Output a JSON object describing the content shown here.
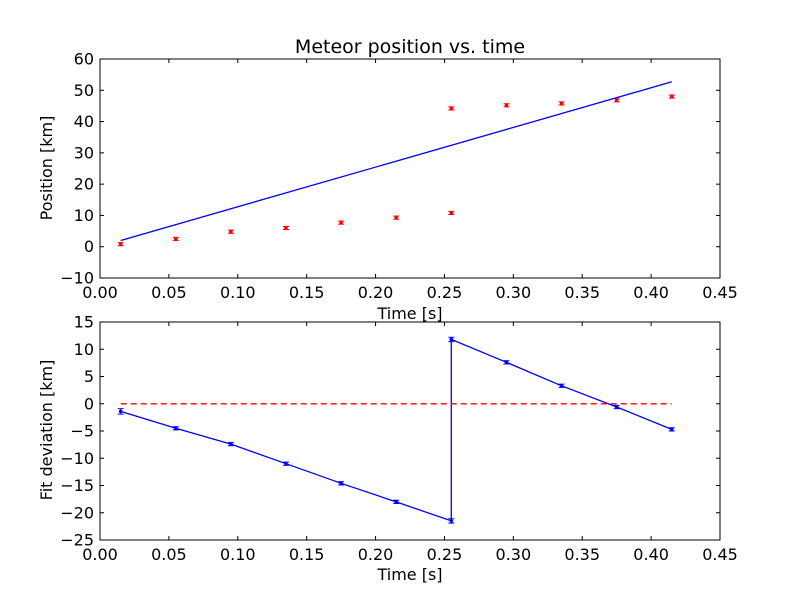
{
  "chart_data": [
    {
      "type": "scatter",
      "title": "Meteor position vs. time",
      "xlabel": "Time [s]",
      "ylabel": "Position [km]",
      "xlim": [
        0.0,
        0.45
      ],
      "ylim": [
        -10,
        60
      ],
      "x_ticks": [
        "0.00",
        "0.05",
        "0.10",
        "0.15",
        "0.20",
        "0.25",
        "0.30",
        "0.35",
        "0.40",
        "0.45"
      ],
      "y_ticks": [
        "−10",
        "0",
        "10",
        "20",
        "30",
        "40",
        "50",
        "60"
      ],
      "grid": false,
      "series": [
        {
          "kind": "points_with_errorbars",
          "color": "#ff0000",
          "x": [
            0.015,
            0.055,
            0.095,
            0.135,
            0.175,
            0.215,
            0.255,
            0.255,
            0.295,
            0.335,
            0.375,
            0.415
          ],
          "y": [
            0.8,
            2.5,
            4.8,
            6.0,
            7.7,
            9.3,
            10.8,
            44.2,
            45.2,
            45.8,
            46.8,
            48.0
          ],
          "yerr": [
            0.5,
            0.5,
            0.5,
            0.5,
            0.5,
            0.5,
            0.5,
            0.5,
            0.5,
            0.5,
            0.5,
            0.5
          ]
        },
        {
          "kind": "fit_line",
          "color": "#0000ff",
          "x": [
            0.015,
            0.415
          ],
          "y": [
            2.0,
            52.7
          ]
        }
      ]
    },
    {
      "type": "line",
      "title": "",
      "xlabel": "Time [s]",
      "ylabel": "Fit deviation [km]",
      "xlim": [
        0.0,
        0.45
      ],
      "ylim": [
        -25,
        15
      ],
      "x_ticks": [
        "0.00",
        "0.05",
        "0.10",
        "0.15",
        "0.20",
        "0.25",
        "0.30",
        "0.35",
        "0.40",
        "0.45"
      ],
      "y_ticks": [
        "−25",
        "−20",
        "−15",
        "−10",
        "−5",
        "0",
        "5",
        "10",
        "15"
      ],
      "grid": false,
      "series": [
        {
          "kind": "line_with_errorbars",
          "color": "#0000ff",
          "x": [
            0.015,
            0.055,
            0.095,
            0.135,
            0.175,
            0.215,
            0.255,
            0.255,
            0.295,
            0.335,
            0.375,
            0.415
          ],
          "y": [
            -1.4,
            -4.5,
            -7.4,
            -11.0,
            -14.6,
            -18.0,
            -21.5,
            11.8,
            7.6,
            3.3,
            -0.6,
            -4.7
          ],
          "yerr": [
            0.5,
            0.3,
            0.3,
            0.3,
            0.3,
            0.3,
            0.4,
            0.4,
            0.3,
            0.3,
            0.3,
            0.3
          ]
        },
        {
          "kind": "reference_line",
          "style": "dashed",
          "color": "#ff0000",
          "x": [
            0.015,
            0.415
          ],
          "y": [
            0,
            0
          ]
        }
      ]
    }
  ]
}
